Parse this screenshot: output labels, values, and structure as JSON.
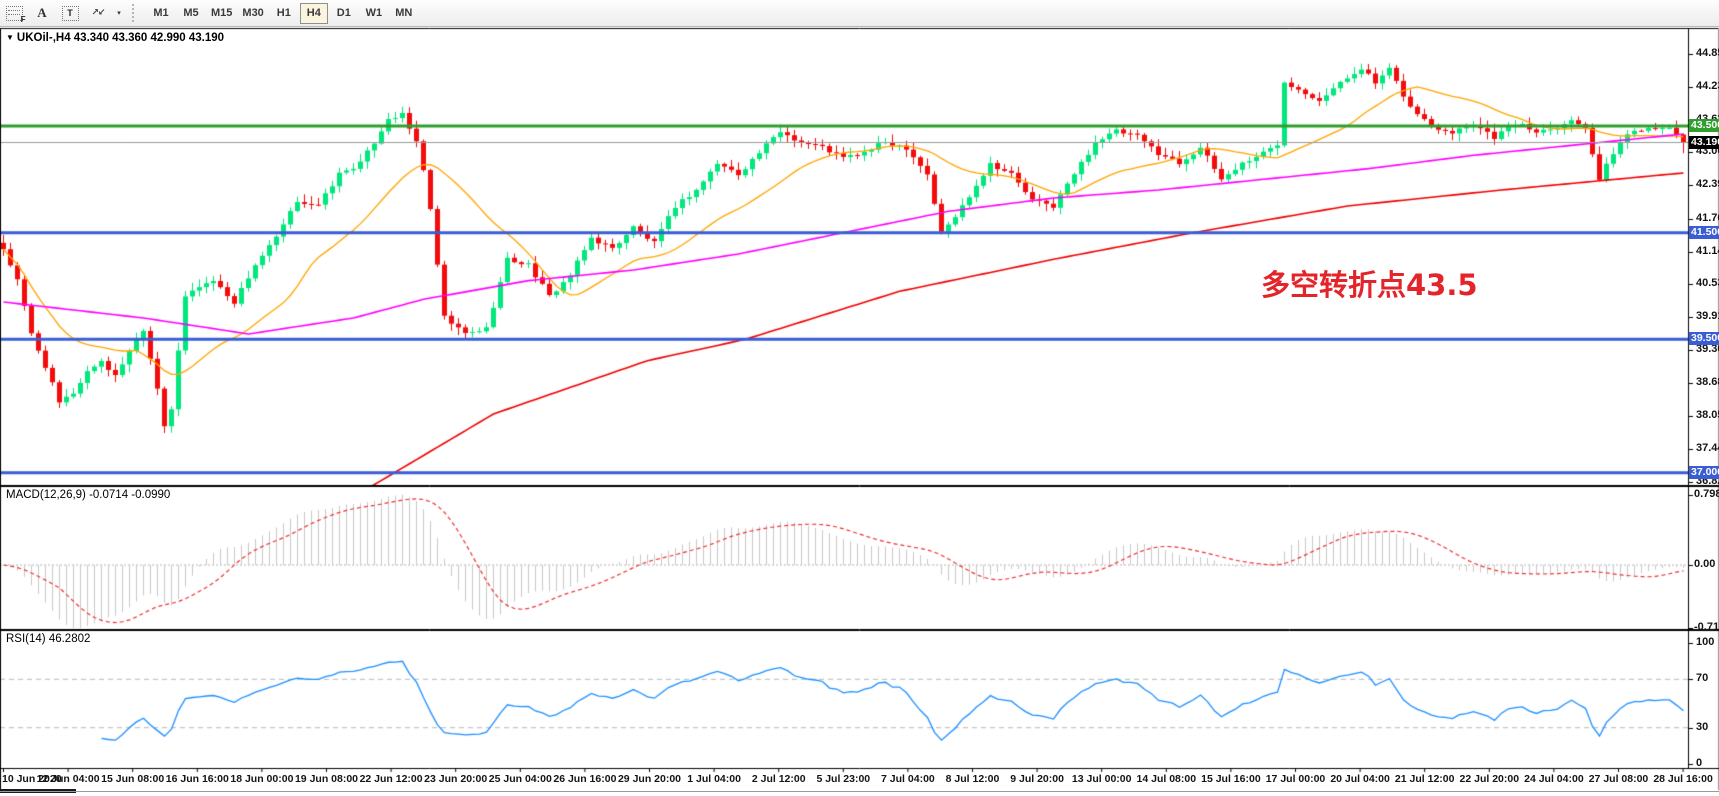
{
  "toolbar": {
    "tools": [
      {
        "name": "fibonacci-tool",
        "label": "F"
      },
      {
        "name": "text-tool",
        "label": "A"
      },
      {
        "name": "text-label-tool",
        "label": "T"
      },
      {
        "name": "arrows-tool",
        "label": "↗↙"
      }
    ],
    "arrows_dropdown_label": "▾",
    "timeframes": [
      {
        "label": "M1",
        "active": false
      },
      {
        "label": "M5",
        "active": false
      },
      {
        "label": "M15",
        "active": false
      },
      {
        "label": "M30",
        "active": false
      },
      {
        "label": "H1",
        "active": false
      },
      {
        "label": "H4",
        "active": true
      },
      {
        "label": "D1",
        "active": false
      },
      {
        "label": "W1",
        "active": false
      },
      {
        "label": "MN",
        "active": false
      }
    ]
  },
  "chart": {
    "title_line": "UKOil-,H4  43.340 43.360 42.990 43.190",
    "collapse_triangle": "▼",
    "annotation": {
      "text": "多空转折点43.5",
      "color": "#e3242b"
    }
  },
  "price_axis": {
    "labels": [
      "44.850",
      "44.235",
      "43.620",
      "43.005",
      "42.390",
      "41.760",
      "41.145",
      "40.530",
      "39.915",
      "39.300",
      "38.685",
      "38.055",
      "37.440",
      "36.825"
    ],
    "badges": [
      {
        "value": "43.500",
        "color": "#2f9e2f"
      },
      {
        "value": "43.190",
        "color": "#000000"
      },
      {
        "value": "41.500",
        "color": "#3b5dd3"
      },
      {
        "value": "39.500",
        "color": "#3b5dd3"
      },
      {
        "value": "37.000",
        "color": "#3b5dd3"
      }
    ]
  },
  "macd_panel": {
    "label": "MACD(12,26,9) -0.0714 -0.0990",
    "axis": [
      "0.7986",
      "0.00",
      "-0.7124"
    ]
  },
  "rsi_panel": {
    "label": "RSI(14) 46.2802",
    "axis": [
      "100",
      "70",
      "30",
      "0"
    ]
  },
  "chart_data": {
    "type": "candlestick",
    "symbol": "UKOil-",
    "timeframe": "H4",
    "bars": 241,
    "ohlc_last": {
      "open": 43.34,
      "high": 43.36,
      "low": 42.99,
      "close": 43.19
    },
    "x_labels": [
      "10 Jun 2020",
      "12 Jun 04:00",
      "15 Jun 08:00",
      "16 Jun 16:00",
      "18 Jun 00:00",
      "19 Jun 08:00",
      "22 Jun 12:00",
      "23 Jun 20:00",
      "25 Jun 04:00",
      "26 Jun 16:00",
      "29 Jun 20:00",
      "1 Jul 04:00",
      "2 Jul 12:00",
      "5 Jul 23:00",
      "7 Jul 04:00",
      "8 Jul 12:00",
      "9 Jul 20:00",
      "13 Jul 00:00",
      "14 Jul 08:00",
      "15 Jul 16:00",
      "17 Jul 00:00",
      "20 Jul 04:00",
      "21 Jul 12:00",
      "22 Jul 20:00",
      "24 Jul 04:00",
      "27 Jul 08:00",
      "28 Jul 16:00"
    ],
    "close_path": [
      [
        0,
        41.2
      ],
      [
        2,
        40.6
      ],
      [
        4,
        39.6
      ],
      [
        6,
        39.0
      ],
      [
        8,
        38.3
      ],
      [
        10,
        38.5
      ],
      [
        12,
        38.9
      ],
      [
        14,
        39.1
      ],
      [
        16,
        38.8
      ],
      [
        18,
        39.3
      ],
      [
        20,
        39.7
      ],
      [
        22,
        38.6
      ],
      [
        23,
        37.9
      ],
      [
        24,
        38.2
      ],
      [
        26,
        40.3
      ],
      [
        28,
        40.5
      ],
      [
        30,
        40.6
      ],
      [
        33,
        40.2
      ],
      [
        36,
        40.9
      ],
      [
        39,
        41.4
      ],
      [
        42,
        42.1
      ],
      [
        45,
        42.0
      ],
      [
        48,
        42.6
      ],
      [
        51,
        42.8
      ],
      [
        53,
        43.2
      ],
      [
        55,
        43.65
      ],
      [
        57,
        43.7
      ],
      [
        59,
        43.2
      ],
      [
        60,
        42.7
      ],
      [
        61,
        41.9
      ],
      [
        63,
        39.9
      ],
      [
        66,
        39.6
      ],
      [
        69,
        39.7
      ],
      [
        72,
        41.0
      ],
      [
        75,
        40.9
      ],
      [
        78,
        40.3
      ],
      [
        81,
        40.7
      ],
      [
        84,
        41.4
      ],
      [
        87,
        41.2
      ],
      [
        90,
        41.6
      ],
      [
        93,
        41.3
      ],
      [
        96,
        42.0
      ],
      [
        99,
        42.3
      ],
      [
        102,
        42.8
      ],
      [
        105,
        42.6
      ],
      [
        108,
        43.0
      ],
      [
        111,
        43.4
      ],
      [
        114,
        43.2
      ],
      [
        117,
        43.1
      ],
      [
        120,
        42.9
      ],
      [
        123,
        43.0
      ],
      [
        126,
        43.2
      ],
      [
        129,
        43.1
      ],
      [
        132,
        42.6
      ],
      [
        134,
        41.5
      ],
      [
        136,
        41.8
      ],
      [
        138,
        42.2
      ],
      [
        141,
        42.8
      ],
      [
        144,
        42.6
      ],
      [
        147,
        42.1
      ],
      [
        150,
        42.0
      ],
      [
        153,
        42.6
      ],
      [
        156,
        43.2
      ],
      [
        159,
        43.4
      ],
      [
        162,
        43.3
      ],
      [
        165,
        43.0
      ],
      [
        168,
        42.8
      ],
      [
        171,
        43.1
      ],
      [
        174,
        42.5
      ],
      [
        177,
        42.8
      ],
      [
        180,
        43.0
      ],
      [
        182,
        43.15
      ],
      [
        183,
        44.35
      ],
      [
        185,
        44.2
      ],
      [
        188,
        44.0
      ],
      [
        191,
        44.3
      ],
      [
        194,
        44.6
      ],
      [
        196,
        44.3
      ],
      [
        198,
        44.55
      ],
      [
        201,
        43.85
      ],
      [
        204,
        43.5
      ],
      [
        207,
        43.4
      ],
      [
        210,
        43.55
      ],
      [
        213,
        43.3
      ],
      [
        216,
        43.55
      ],
      [
        219,
        43.4
      ],
      [
        222,
        43.5
      ],
      [
        224,
        43.6
      ],
      [
        226,
        43.5
      ],
      [
        228,
        42.5
      ],
      [
        230,
        43.0
      ],
      [
        232,
        43.35
      ],
      [
        234,
        43.45
      ],
      [
        237,
        43.5
      ],
      [
        239,
        43.35
      ],
      [
        240,
        43.19
      ]
    ],
    "horizontal_lines": [
      {
        "price": 43.5,
        "color": "#2f9e2f",
        "width": 3
      },
      {
        "price": 43.19,
        "color": "#9a9a9a",
        "width": 1
      },
      {
        "price": 41.5,
        "color": "#3b5dd3",
        "width": 3
      },
      {
        "price": 39.5,
        "color": "#3b5dd3",
        "width": 3
      },
      {
        "price": 37.0,
        "color": "#3b5dd3",
        "width": 3
      }
    ],
    "moving_averages": [
      {
        "name": "ma-fast-orange",
        "color": "#ffa500",
        "mode": "sma",
        "period": 20
      },
      {
        "name": "ma-medium-magenta",
        "color": "#ff00ff",
        "mode": "path",
        "path": [
          [
            0,
            40.2
          ],
          [
            20,
            39.9
          ],
          [
            35,
            39.6
          ],
          [
            50,
            39.9
          ],
          [
            60,
            40.25
          ],
          [
            75,
            40.6
          ],
          [
            90,
            40.8
          ],
          [
            105,
            41.1
          ],
          [
            120,
            41.5
          ],
          [
            135,
            41.9
          ],
          [
            150,
            42.15
          ],
          [
            165,
            42.3
          ],
          [
            180,
            42.5
          ],
          [
            195,
            42.7
          ],
          [
            210,
            42.95
          ],
          [
            225,
            43.15
          ],
          [
            240,
            43.35
          ]
        ]
      },
      {
        "name": "ma-slow-red",
        "color": "#f00000",
        "mode": "path",
        "path": [
          [
            52,
            36.7
          ],
          [
            70,
            38.1
          ],
          [
            92,
            39.1
          ],
          [
            106,
            39.5
          ],
          [
            128,
            40.4
          ],
          [
            150,
            41.0
          ],
          [
            170,
            41.5
          ],
          [
            192,
            42.0
          ],
          [
            214,
            42.3
          ],
          [
            240,
            42.62
          ]
        ]
      }
    ],
    "macd": {
      "params": "12,26,9",
      "main_last": -0.0714,
      "signal_last": -0.099,
      "axis_max": 0.7986,
      "axis_min": -0.7124,
      "histogram_color": "#c9c9c9",
      "signal_color": "#ee3434"
    },
    "rsi": {
      "period": 14,
      "last": 46.2802,
      "levels": [
        70,
        30
      ],
      "color": "#1e90ff"
    },
    "candle_up_color": "#00e87c",
    "candle_down_color": "#f40b0b"
  }
}
